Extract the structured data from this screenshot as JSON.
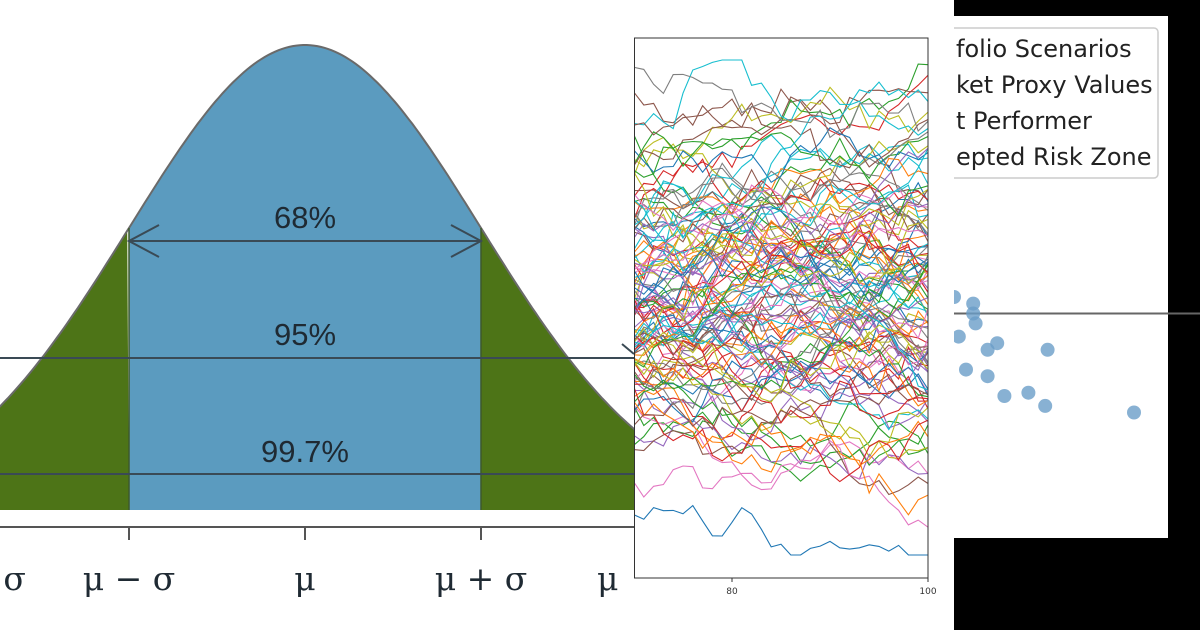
{
  "chart_data": [
    {
      "type": "area",
      "xlabel_ticks": [
        "σ",
        "μ − σ",
        "μ",
        "μ + σ",
        "μ"
      ],
      "intervals": [
        {
          "label": "68%",
          "range_sigma": [
            -1,
            1
          ]
        },
        {
          "label": "95%",
          "range_sigma": [
            -2,
            2
          ]
        },
        {
          "label": "99.7%",
          "range_sigma": [
            -3,
            3
          ]
        }
      ],
      "x_range_sigma": [
        -2.15,
        2.15
      ],
      "colors": {
        "center": "#5b9bbf",
        "tails": "#4d7417",
        "outline": "#6a6a6a",
        "arrow": "#3a4a55"
      }
    },
    {
      "type": "line",
      "x_ticks": [
        80,
        100
      ],
      "xlim": [
        70,
        100
      ],
      "ylim": [
        0,
        1
      ],
      "series_count": 120,
      "grid": false
    },
    {
      "type": "scatter",
      "legend": [
        "folio Scenarios",
        "ket Proxy Values",
        "t Performer",
        "epted Risk Zone"
      ],
      "legend_placement": "top-left",
      "points": [
        {
          "x": 0.0,
          "y": 0.0
        },
        {
          "x": 0.8,
          "y": 0.2
        },
        {
          "x": 0.8,
          "y": 0.5
        },
        {
          "x": 0.9,
          "y": 0.8
        },
        {
          "x": 0.2,
          "y": 1.2
        },
        {
          "x": 1.4,
          "y": 1.6
        },
        {
          "x": 1.8,
          "y": 1.4
        },
        {
          "x": 0.5,
          "y": 2.2
        },
        {
          "x": 1.4,
          "y": 2.4
        },
        {
          "x": 2.1,
          "y": 3.0
        },
        {
          "x": 3.1,
          "y": 2.9
        },
        {
          "x": 3.8,
          "y": 3.3
        },
        {
          "x": 3.9,
          "y": 1.6
        },
        {
          "x": 7.5,
          "y": 3.5
        }
      ],
      "hline": 0.5,
      "colors": {
        "points": "#6a9dc8",
        "hline": "#666666"
      }
    }
  ]
}
